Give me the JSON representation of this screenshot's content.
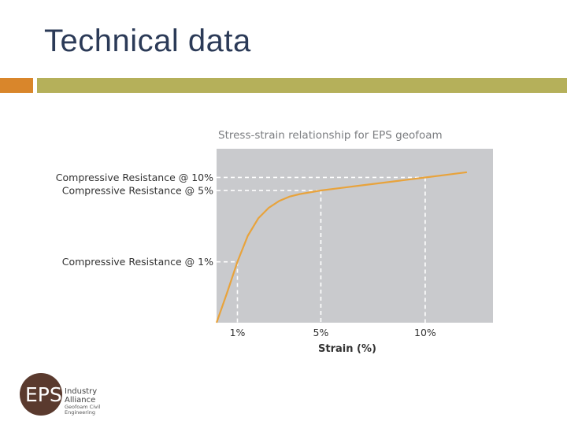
{
  "slide": {
    "title": "Technical data"
  },
  "colors": {
    "accent_orange": "#d9862b",
    "rule_olive": "#b5b05a",
    "title_navy": "#2b3a57",
    "plot_bg": "#c9cacd",
    "curve": "#e8a33c",
    "logo_brown": "#5a3a2e"
  },
  "chart_data": {
    "type": "line",
    "title": "Stress-strain relationship for EPS geofoam",
    "xlabel": "Strain (%)",
    "ylabel": "",
    "x_ticks": [
      {
        "value": 1,
        "label": "1%"
      },
      {
        "value": 5,
        "label": "5%"
      },
      {
        "value": 10,
        "label": "10%"
      }
    ],
    "xlim": [
      0,
      13.25
    ],
    "ylim": [
      0,
      1.0
    ],
    "grid": false,
    "series": [
      {
        "x": [
          0,
          0.5,
          1,
          1.5,
          2,
          2.5,
          3,
          3.5,
          4,
          5,
          6,
          7,
          8,
          9,
          10,
          11,
          12
        ],
        "y": [
          0,
          0.17,
          0.35,
          0.5,
          0.6,
          0.66,
          0.7,
          0.725,
          0.74,
          0.76,
          0.775,
          0.79,
          0.805,
          0.82,
          0.835,
          0.85,
          0.865
        ]
      }
    ],
    "annotations": [
      {
        "label": "Compressive Resistance @ 10%",
        "x": 10,
        "y": 0.835
      },
      {
        "label": "Compressive Resistance @ 5%",
        "x": 5,
        "y": 0.76
      },
      {
        "label": "Compressive Resistance @ 1%",
        "x": 1,
        "y": 0.35
      }
    ]
  },
  "logo": {
    "mark": "EPS",
    "line1": "Industry",
    "line2": "Alliance",
    "line3": "Geofoam Civil",
    "line4": "Engineering"
  }
}
